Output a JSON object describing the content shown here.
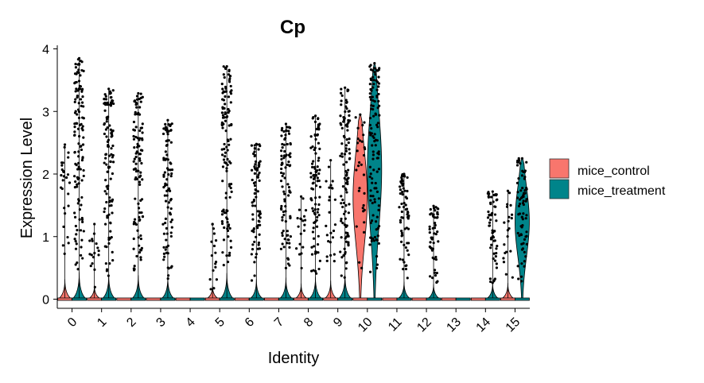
{
  "chart_data": {
    "type": "violin",
    "title": "Cp",
    "xlabel": "Identity",
    "ylabel": "Expression Level",
    "ylim": [
      -0.15,
      4.05
    ],
    "yticks": [
      "0",
      "1",
      "2",
      "3",
      "4"
    ],
    "categories": [
      "0",
      "1",
      "2",
      "3",
      "4",
      "5",
      "6",
      "7",
      "8",
      "9",
      "10",
      "11",
      "12",
      "13",
      "14",
      "15"
    ],
    "legend": {
      "position": "right",
      "entries": [
        "mice_control",
        "mice_treatment"
      ]
    },
    "colors": {
      "mice_control": "#F8766D",
      "mice_treatment": "#00848A"
    },
    "series": [
      {
        "name": "mice_control",
        "max_expression": [
          2.47,
          1.2,
          0,
          0,
          0,
          1.2,
          0,
          0,
          1.64,
          2.22,
          2.95,
          0,
          0,
          0,
          0,
          1.73
        ],
        "violin_peak_nonzero": [
          0,
          0,
          0,
          0,
          0,
          0,
          0,
          0,
          0,
          0,
          2.95,
          0,
          0,
          0,
          0,
          0
        ]
      },
      {
        "name": "mice_treatment",
        "max_expression": [
          3.85,
          3.36,
          3.29,
          2.86,
          0,
          3.72,
          2.48,
          2.8,
          2.93,
          3.38,
          3.77,
          2.0,
          1.49,
          0,
          1.72,
          2.25
        ],
        "violin_peak_nonzero": [
          0,
          0,
          0,
          0,
          0,
          0,
          0,
          0,
          0,
          0,
          3.77,
          0,
          0,
          0,
          0,
          2.25
        ]
      }
    ]
  }
}
